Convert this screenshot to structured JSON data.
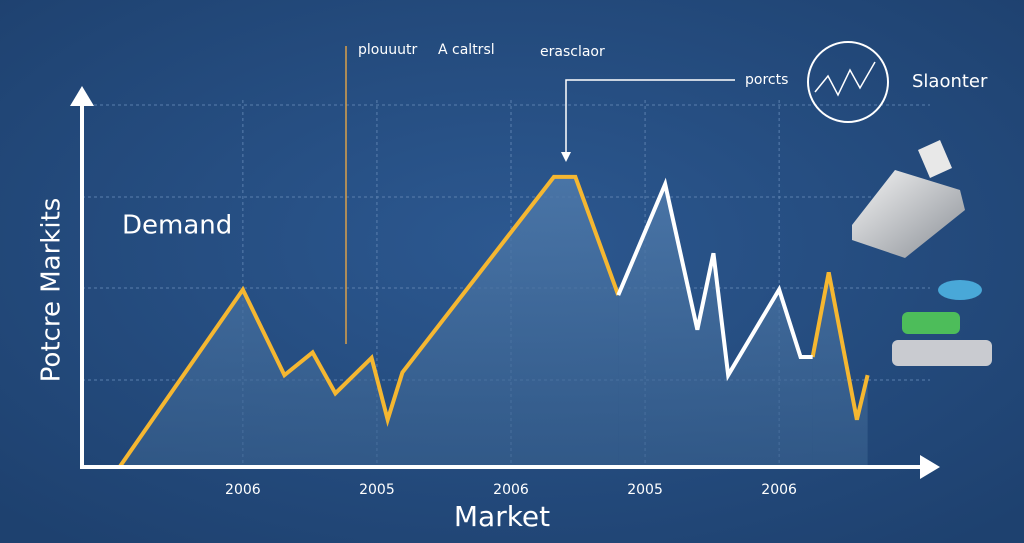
{
  "chart_data": {
    "type": "line",
    "y_label": "Potcre Markits",
    "x_label": "Market",
    "annotations": [
      "Demand",
      "plouuutr",
      "A caltrsl",
      "erasclaor",
      "porcts",
      "Slaonter"
    ],
    "x": [
      -0.92,
      0,
      0.31,
      0.52,
      0.69,
      0.96,
      1.08,
      1.19,
      2.32,
      2.48,
      2.8,
      3.15,
      3.39,
      3.51,
      3.62,
      4.0,
      4.16,
      4.25,
      4.37,
      4.58,
      4.66
    ],
    "series": [
      {
        "color": "#f5b731",
        "values": [
          0,
          1.95,
          1.01,
          1.26,
          0.81,
          1.2,
          0.52,
          1.04,
          3.19,
          3.19,
          1.89,
          null,
          null,
          null,
          null,
          null,
          null,
          1.21,
          2.14,
          0.52,
          1.01
        ]
      },
      {
        "color": "#ffffff",
        "values": [
          null,
          null,
          null,
          null,
          null,
          null,
          null,
          null,
          null,
          null,
          1.89,
          3.11,
          1.51,
          2.35,
          1.01,
          1.95,
          1.21,
          1.21,
          null,
          null,
          null
        ]
      }
    ],
    "xlim": [
      -1.2,
      5.2
    ],
    "ylim": [
      0,
      4.2
    ],
    "xticks": [
      {
        "value": 0,
        "label": "2006"
      },
      {
        "value": 1,
        "label": "2005"
      },
      {
        "value": 2,
        "label": "2006"
      },
      {
        "value": 3,
        "label": "2005"
      },
      {
        "value": 4,
        "label": "2006"
      }
    ],
    "grid": true
  }
}
